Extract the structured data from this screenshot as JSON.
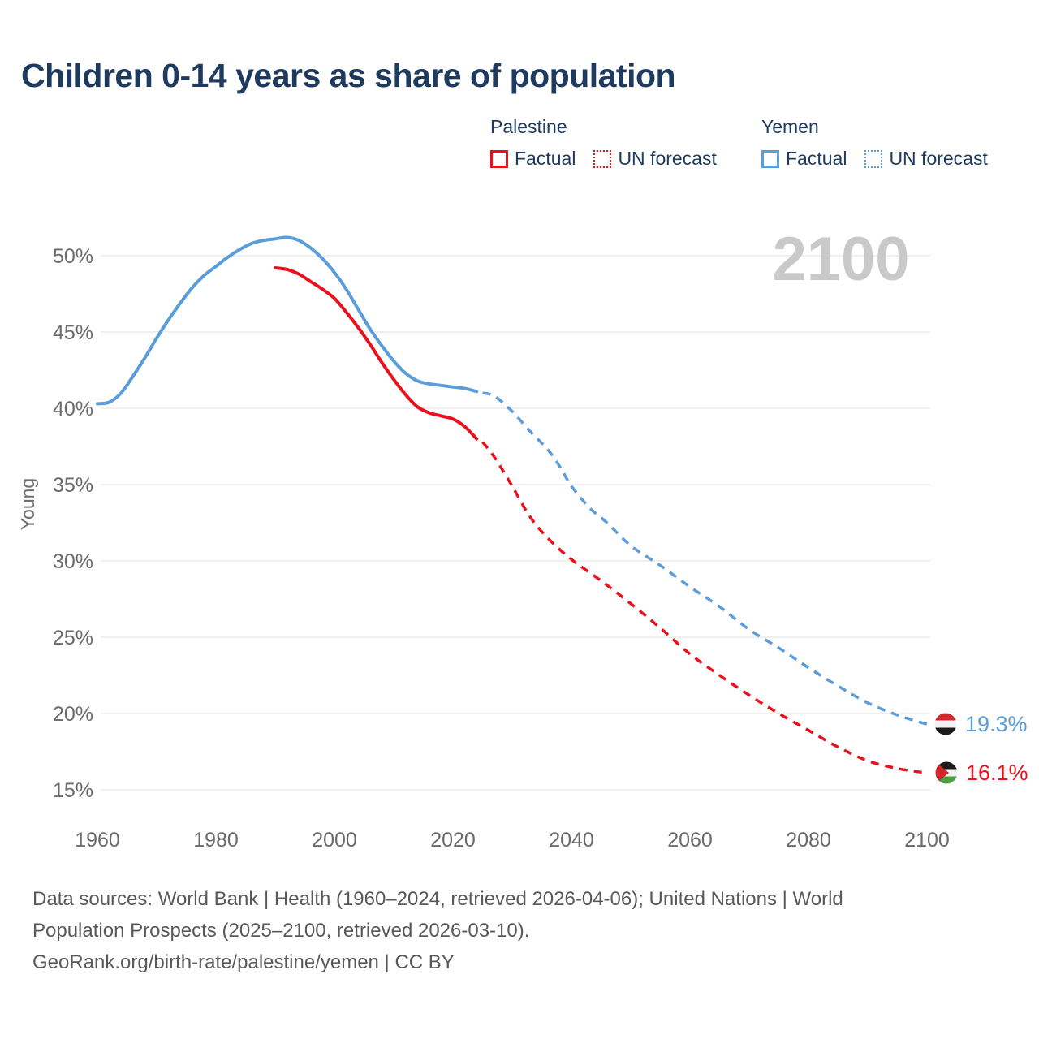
{
  "header": {
    "title": "Children 0-14 years as share of population"
  },
  "colors": {
    "palestine": "#e8111c",
    "yemen": "#5b9dd8",
    "title_text": "#1e3a5f",
    "axis_text": "#6b6b6b",
    "grid": "#e8e8e8",
    "watermark": "#c9c9c9",
    "footer_text": "#595959",
    "yemen_flag": {
      "red": "#d0262c",
      "white": "#f2f2f2",
      "black": "#1b1b1b"
    },
    "palestine_flag": {
      "black": "#1b1b1b",
      "white": "#f2f2f2",
      "green": "#4c9f45",
      "red": "#d0262c"
    }
  },
  "legend": {
    "groups": [
      {
        "name": "Palestine",
        "color": "#e8111c",
        "items": [
          {
            "label": "Factual",
            "style": "solid"
          },
          {
            "label": "UN forecast",
            "style": "dotted"
          }
        ]
      },
      {
        "name": "Yemen",
        "color": "#5b9dd8",
        "items": [
          {
            "label": "Factual",
            "style": "solid"
          },
          {
            "label": "UN forecast",
            "style": "dotted"
          }
        ]
      }
    ]
  },
  "watermark": "2100",
  "chart_data": {
    "type": "line",
    "title": "Children 0-14 years as share of population",
    "ylabel": "Young",
    "xlabel": "",
    "ylim": [
      13,
      53
    ],
    "xlim": [
      1960,
      2100
    ],
    "grid": true,
    "legend_position": "top-right",
    "y_axis": {
      "ticks": [
        50,
        45,
        40,
        35,
        30,
        25,
        20,
        15
      ],
      "unit": "%"
    },
    "x_axis": {
      "ticks": [
        1960,
        1980,
        2000,
        2020,
        2040,
        2060,
        2080,
        2100
      ]
    },
    "series": [
      {
        "id": "yemen-factual",
        "name": "Yemen Factual",
        "color": "#5b9dd8",
        "dashed": false,
        "points": [
          [
            1960,
            40.3
          ],
          [
            1962,
            40.4
          ],
          [
            1964,
            41.0
          ],
          [
            1966,
            42.1
          ],
          [
            1968,
            43.3
          ],
          [
            1970,
            44.6
          ],
          [
            1972,
            45.8
          ],
          [
            1974,
            46.9
          ],
          [
            1976,
            47.9
          ],
          [
            1978,
            48.7
          ],
          [
            1980,
            49.3
          ],
          [
            1982,
            49.9
          ],
          [
            1984,
            50.4
          ],
          [
            1986,
            50.8
          ],
          [
            1988,
            51.0
          ],
          [
            1990,
            51.1
          ],
          [
            1992,
            51.2
          ],
          [
            1994,
            51.0
          ],
          [
            1996,
            50.5
          ],
          [
            1998,
            49.8
          ],
          [
            2000,
            48.9
          ],
          [
            2002,
            47.8
          ],
          [
            2004,
            46.5
          ],
          [
            2006,
            45.2
          ],
          [
            2008,
            44.1
          ],
          [
            2010,
            43.1
          ],
          [
            2012,
            42.3
          ],
          [
            2014,
            41.8
          ],
          [
            2016,
            41.6
          ],
          [
            2018,
            41.5
          ],
          [
            2020,
            41.4
          ],
          [
            2022,
            41.3
          ],
          [
            2024,
            41.1
          ]
        ]
      },
      {
        "id": "yemen-forecast",
        "name": "Yemen UN forecast",
        "color": "#5b9dd8",
        "dashed": true,
        "points": [
          [
            2025,
            41.0
          ],
          [
            2027,
            40.8
          ],
          [
            2030,
            39.8
          ],
          [
            2033,
            38.5
          ],
          [
            2036,
            37.3
          ],
          [
            2038,
            36.2
          ],
          [
            2040,
            34.9
          ],
          [
            2043,
            33.5
          ],
          [
            2046,
            32.5
          ],
          [
            2050,
            31.0
          ],
          [
            2055,
            29.7
          ],
          [
            2060,
            28.3
          ],
          [
            2065,
            27.0
          ],
          [
            2070,
            25.5
          ],
          [
            2075,
            24.3
          ],
          [
            2080,
            23.0
          ],
          [
            2085,
            21.8
          ],
          [
            2090,
            20.7
          ],
          [
            2095,
            19.9
          ],
          [
            2100,
            19.3
          ]
        ]
      },
      {
        "id": "palestine-factual",
        "name": "Palestine Factual",
        "color": "#e8111c",
        "dashed": false,
        "points": [
          [
            1990,
            49.2
          ],
          [
            1992,
            49.1
          ],
          [
            1994,
            48.8
          ],
          [
            1996,
            48.3
          ],
          [
            1998,
            47.8
          ],
          [
            2000,
            47.2
          ],
          [
            2002,
            46.3
          ],
          [
            2004,
            45.3
          ],
          [
            2006,
            44.2
          ],
          [
            2008,
            43.0
          ],
          [
            2010,
            41.9
          ],
          [
            2012,
            40.9
          ],
          [
            2014,
            40.1
          ],
          [
            2016,
            39.7
          ],
          [
            2018,
            39.5
          ],
          [
            2020,
            39.3
          ],
          [
            2022,
            38.8
          ],
          [
            2024,
            38.0
          ]
        ]
      },
      {
        "id": "palestine-forecast",
        "name": "Palestine UN forecast",
        "color": "#e8111c",
        "dashed": true,
        "points": [
          [
            2025,
            37.8
          ],
          [
            2027,
            36.8
          ],
          [
            2030,
            34.9
          ],
          [
            2033,
            32.9
          ],
          [
            2036,
            31.5
          ],
          [
            2040,
            30.1
          ],
          [
            2045,
            28.7
          ],
          [
            2050,
            27.2
          ],
          [
            2055,
            25.6
          ],
          [
            2060,
            23.9
          ],
          [
            2065,
            22.5
          ],
          [
            2070,
            21.2
          ],
          [
            2075,
            20.0
          ],
          [
            2080,
            18.9
          ],
          [
            2085,
            17.8
          ],
          [
            2090,
            16.9
          ],
          [
            2095,
            16.4
          ],
          [
            2100,
            16.1
          ]
        ]
      }
    ],
    "end_labels": [
      {
        "country": "Yemen",
        "value": "19.3%",
        "color": "#5b9dd8",
        "flag": "yemen"
      },
      {
        "country": "Palestine",
        "value": "16.1%",
        "color": "#e8111c",
        "flag": "palestine"
      }
    ]
  },
  "footer": {
    "lines": [
      "Data sources: World Bank | Health (1960–2024, retrieved 2026-04-06); United Nations | World",
      "Population Prospects (2025–2100, retrieved 2026-03-10).",
      "GeoRank.org/birth-rate/palestine/yemen | CC BY"
    ]
  }
}
